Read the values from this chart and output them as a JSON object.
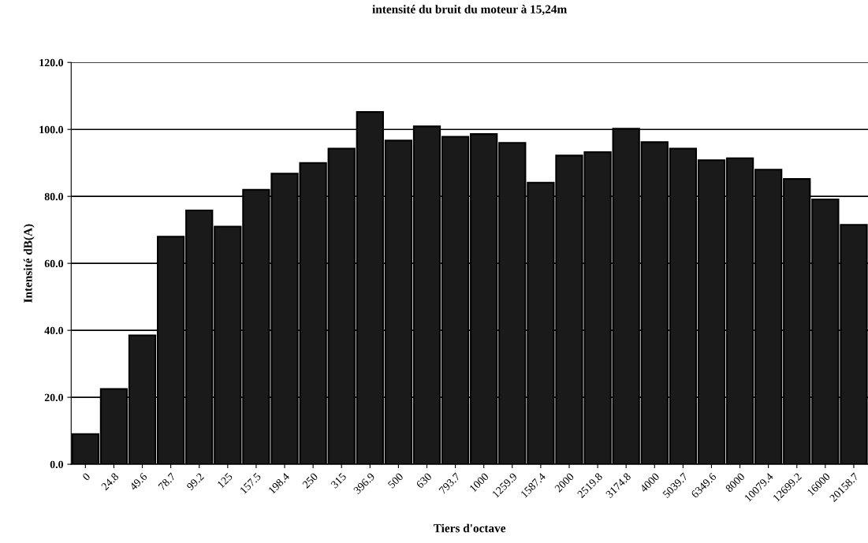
{
  "chart_data": {
    "type": "bar",
    "title": "intensité du bruit du moteur à 15,24m",
    "xlabel": "Tiers d'octave",
    "ylabel": "Intensité dB(A)",
    "categories": [
      "0",
      "24.8",
      "49.6",
      "78.7",
      "99.2",
      "125",
      "157.5",
      "198.4",
      "250",
      "315",
      "396.9",
      "500",
      "630",
      "793.7",
      "1000",
      "1259.9",
      "1587.4",
      "2000",
      "2519.8",
      "3174.8",
      "4000",
      "5039.7",
      "6349.6",
      "8000",
      "10079.4",
      "12699.2",
      "16000",
      "20158.7"
    ],
    "values": [
      9,
      22.5,
      38.5,
      68,
      75.8,
      71,
      82,
      86.8,
      90,
      94.3,
      105.2,
      96.7,
      100.9,
      97.8,
      98.6,
      96,
      84.1,
      92.2,
      93.2,
      100.2,
      96.2,
      94.3,
      90.8,
      91.4,
      88,
      85.2,
      79.1,
      71.5
    ],
    "color": "#1a1a1a",
    "ylim": [
      0,
      120
    ],
    "yticks": [
      {
        "value": 0,
        "label": "0.0"
      },
      {
        "value": 20,
        "label": "20.0"
      },
      {
        "value": 40,
        "label": "40.0"
      },
      {
        "value": 60,
        "label": "60.0"
      },
      {
        "value": 80,
        "label": "80.0"
      },
      {
        "value": 100,
        "label": "100.0"
      },
      {
        "value": 120,
        "label": "120.0"
      }
    ],
    "grid": "y",
    "legend": false
  }
}
